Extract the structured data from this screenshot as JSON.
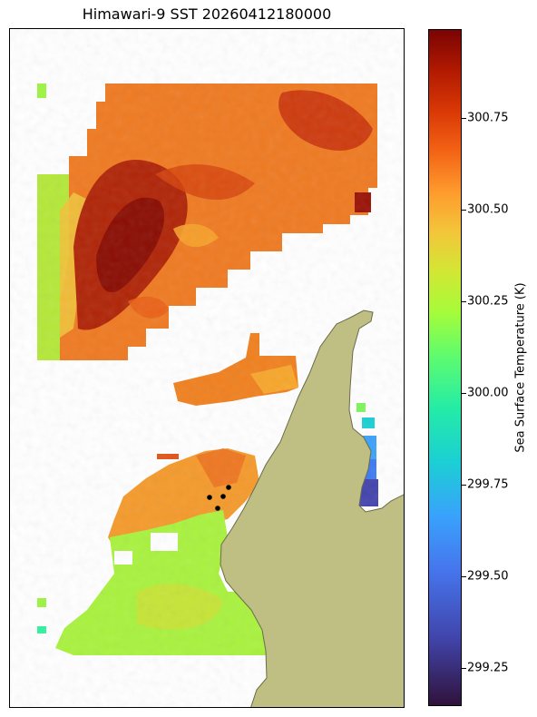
{
  "title": "Himawari-9 SST 20260412180000",
  "colorbar": {
    "label": "Sea Surface Temperature (K)",
    "ticks": [
      "300.75",
      "300.50",
      "300.25",
      "300.00",
      "299.75",
      "299.50",
      "299.25"
    ],
    "range": [
      299.14,
      300.99
    ],
    "colormap": "turbo"
  },
  "colors": {
    "land": "#bfbf84",
    "land_edge": "#6b6b4a",
    "marker": "#000000"
  },
  "markers_count": 4
}
